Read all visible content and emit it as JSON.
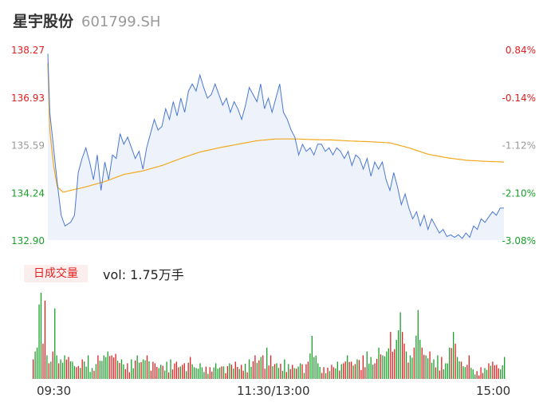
{
  "header": {
    "name": "星宇股份",
    "code": "601799.SH"
  },
  "colors": {
    "up": "#e02020",
    "down": "#1aa02a",
    "price_line": "#4a78d4",
    "avg_line": "#f2a81e",
    "area_fill": "#edf2fb",
    "neutral_label": "#999999"
  },
  "chart_data": [
    {
      "type": "line",
      "name": "intraday-price",
      "y_ticks": [
        "138.27",
        "136.93",
        "135.59",
        "134.24",
        "132.90"
      ],
      "pct_ticks": [
        "0.84%",
        "-0.14%",
        "-1.12%",
        "-2.10%",
        "-3.08%"
      ],
      "ylim": [
        132.9,
        138.27
      ],
      "x_ticks": [
        "09:30",
        "11:30/13:00",
        "15:00"
      ],
      "session_minutes": 240,
      "price_keyframes": [
        [
          0,
          138.15
        ],
        [
          1,
          136.5
        ],
        [
          3,
          135.5
        ],
        [
          5,
          134.5
        ],
        [
          7,
          133.6
        ],
        [
          9,
          133.3
        ],
        [
          12,
          133.4
        ],
        [
          14,
          133.6
        ],
        [
          16,
          134.8
        ],
        [
          18,
          135.2
        ],
        [
          20,
          135.5
        ],
        [
          22,
          135.1
        ],
        [
          24,
          134.6
        ],
        [
          26,
          135.3
        ],
        [
          28,
          134.3
        ],
        [
          30,
          135.1
        ],
        [
          32,
          134.6
        ],
        [
          34,
          135.3
        ],
        [
          36,
          135.2
        ],
        [
          38,
          135.9
        ],
        [
          40,
          135.6
        ],
        [
          42,
          135.8
        ],
        [
          44,
          135.5
        ],
        [
          46,
          135.2
        ],
        [
          48,
          135.4
        ],
        [
          50,
          134.9
        ],
        [
          52,
          135.5
        ],
        [
          54,
          135.9
        ],
        [
          56,
          136.3
        ],
        [
          58,
          136.0
        ],
        [
          60,
          136.1
        ],
        [
          62,
          136.6
        ],
        [
          64,
          136.3
        ],
        [
          66,
          136.8
        ],
        [
          68,
          136.4
        ],
        [
          70,
          136.9
        ],
        [
          72,
          136.5
        ],
        [
          74,
          137.1
        ],
        [
          76,
          137.3
        ],
        [
          78,
          137.1
        ],
        [
          80,
          137.55
        ],
        [
          82,
          137.2
        ],
        [
          84,
          136.9
        ],
        [
          86,
          137.0
        ],
        [
          88,
          137.3
        ],
        [
          90,
          137.0
        ],
        [
          92,
          136.7
        ],
        [
          94,
          136.9
        ],
        [
          96,
          136.5
        ],
        [
          98,
          136.8
        ],
        [
          100,
          136.6
        ],
        [
          102,
          136.3
        ],
        [
          104,
          136.7
        ],
        [
          106,
          137.2
        ],
        [
          108,
          137.0
        ],
        [
          110,
          136.8
        ],
        [
          112,
          137.3
        ],
        [
          114,
          136.6
        ],
        [
          116,
          136.9
        ],
        [
          118,
          136.5
        ],
        [
          120,
          136.9
        ],
        [
          122,
          137.3
        ],
        [
          124,
          136.5
        ],
        [
          126,
          136.3
        ],
        [
          128,
          136.0
        ],
        [
          130,
          135.8
        ],
        [
          132,
          135.3
        ],
        [
          134,
          135.6
        ],
        [
          136,
          135.4
        ],
        [
          138,
          135.5
        ],
        [
          140,
          135.3
        ],
        [
          142,
          135.6
        ],
        [
          144,
          135.6
        ],
        [
          146,
          135.4
        ],
        [
          148,
          135.5
        ],
        [
          150,
          135.3
        ],
        [
          152,
          135.5
        ],
        [
          154,
          135.4
        ],
        [
          156,
          135.2
        ],
        [
          158,
          135.4
        ],
        [
          160,
          135.0
        ],
        [
          162,
          135.3
        ],
        [
          164,
          135.2
        ],
        [
          166,
          134.9
        ],
        [
          168,
          135.2
        ],
        [
          170,
          134.7
        ],
        [
          172,
          135.1
        ],
        [
          174,
          134.9
        ],
        [
          176,
          135.1
        ],
        [
          178,
          134.6
        ],
        [
          180,
          134.3
        ],
        [
          182,
          134.8
        ],
        [
          184,
          134.4
        ],
        [
          186,
          133.9
        ],
        [
          188,
          134.2
        ],
        [
          190,
          133.8
        ],
        [
          192,
          133.5
        ],
        [
          194,
          133.7
        ],
        [
          196,
          133.3
        ],
        [
          198,
          133.6
        ],
        [
          200,
          133.2
        ],
        [
          202,
          133.5
        ],
        [
          204,
          133.3
        ],
        [
          206,
          133.1
        ],
        [
          208,
          133.2
        ],
        [
          210,
          133.0
        ],
        [
          212,
          133.05
        ],
        [
          214,
          132.98
        ],
        [
          216,
          133.05
        ],
        [
          218,
          132.95
        ],
        [
          220,
          133.1
        ],
        [
          222,
          132.98
        ],
        [
          224,
          133.3
        ],
        [
          226,
          133.2
        ],
        [
          228,
          133.5
        ],
        [
          230,
          133.4
        ],
        [
          232,
          133.55
        ],
        [
          234,
          133.7
        ],
        [
          236,
          133.6
        ],
        [
          238,
          133.8
        ],
        [
          240,
          133.8
        ]
      ],
      "avg_keyframes": [
        [
          0,
          137.9
        ],
        [
          1,
          136.0
        ],
        [
          3,
          135.0
        ],
        [
          5,
          134.4
        ],
        [
          8,
          134.25
        ],
        [
          12,
          134.3
        ],
        [
          20,
          134.4
        ],
        [
          30,
          134.55
        ],
        [
          40,
          134.75
        ],
        [
          50,
          134.85
        ],
        [
          60,
          135.0
        ],
        [
          70,
          135.2
        ],
        [
          80,
          135.38
        ],
        [
          90,
          135.5
        ],
        [
          100,
          135.6
        ],
        [
          110,
          135.7
        ],
        [
          120,
          135.75
        ],
        [
          130,
          135.75
        ],
        [
          140,
          135.73
        ],
        [
          150,
          135.72
        ],
        [
          160,
          135.69
        ],
        [
          170,
          135.67
        ],
        [
          180,
          135.64
        ],
        [
          190,
          135.5
        ],
        [
          200,
          135.32
        ],
        [
          210,
          135.22
        ],
        [
          220,
          135.15
        ],
        [
          230,
          135.12
        ],
        [
          240,
          135.1
        ]
      ]
    },
    {
      "type": "bar",
      "name": "volume",
      "label": "日成交量",
      "summary": "vol: 1.75万手",
      "volume_keyframes": [
        [
          0,
          25,
          "up"
        ],
        [
          1,
          35,
          "down"
        ],
        [
          2,
          40,
          "down"
        ],
        [
          3,
          95,
          "down"
        ],
        [
          4,
          110,
          "down"
        ],
        [
          5,
          45,
          "up"
        ],
        [
          6,
          100,
          "up"
        ],
        [
          7,
          30,
          "down"
        ],
        [
          8,
          20,
          "up"
        ],
        [
          9,
          22,
          "down"
        ],
        [
          10,
          35,
          "up"
        ],
        [
          11,
          90,
          "down"
        ],
        [
          12,
          30,
          "down"
        ],
        [
          13,
          20,
          "up"
        ],
        [
          14,
          25,
          "down"
        ],
        [
          16,
          30,
          "down"
        ],
        [
          18,
          28,
          "up"
        ],
        [
          20,
          22,
          "down"
        ],
        [
          22,
          15,
          "up"
        ],
        [
          25,
          25,
          "up"
        ],
        [
          28,
          30,
          "down"
        ],
        [
          30,
          14,
          "down"
        ],
        [
          33,
          30,
          "up"
        ],
        [
          36,
          30,
          "down"
        ],
        [
          38,
          35,
          "down"
        ],
        [
          40,
          30,
          "up"
        ],
        [
          42,
          32,
          "up"
        ],
        [
          45,
          25,
          "down"
        ],
        [
          48,
          20,
          "up"
        ],
        [
          50,
          25,
          "down"
        ],
        [
          53,
          30,
          "down"
        ],
        [
          56,
          25,
          "down"
        ],
        [
          58,
          30,
          "up"
        ],
        [
          62,
          20,
          "up"
        ],
        [
          65,
          18,
          "down"
        ],
        [
          68,
          22,
          "down"
        ],
        [
          70,
          25,
          "down"
        ],
        [
          73,
          22,
          "up"
        ],
        [
          76,
          18,
          "up"
        ],
        [
          80,
          28,
          "up"
        ],
        [
          82,
          15,
          "down"
        ],
        [
          85,
          20,
          "down"
        ],
        [
          90,
          15,
          "up"
        ],
        [
          93,
          20,
          "down"
        ],
        [
          96,
          16,
          "up"
        ],
        [
          100,
          20,
          "down"
        ],
        [
          103,
          22,
          "up"
        ],
        [
          106,
          18,
          "up"
        ],
        [
          110,
          25,
          "down"
        ],
        [
          113,
          30,
          "up"
        ],
        [
          116,
          28,
          "down"
        ],
        [
          119,
          40,
          "down"
        ],
        [
          121,
          30,
          "up"
        ],
        [
          124,
          20,
          "down"
        ],
        [
          128,
          25,
          "down"
        ],
        [
          132,
          18,
          "up"
        ],
        [
          136,
          20,
          "down"
        ],
        [
          140,
          22,
          "up"
        ],
        [
          142,
          55,
          "down"
        ],
        [
          145,
          20,
          "down"
        ],
        [
          148,
          15,
          "up"
        ],
        [
          152,
          18,
          "up"
        ],
        [
          155,
          22,
          "down"
        ],
        [
          158,
          20,
          "up"
        ],
        [
          160,
          30,
          "down"
        ],
        [
          162,
          22,
          "up"
        ],
        [
          165,
          25,
          "down"
        ],
        [
          168,
          30,
          "up"
        ],
        [
          170,
          35,
          "down"
        ],
        [
          172,
          28,
          "down"
        ],
        [
          174,
          20,
          "up"
        ],
        [
          176,
          40,
          "down"
        ],
        [
          178,
          30,
          "down"
        ],
        [
          180,
          35,
          "down"
        ],
        [
          182,
          60,
          "up"
        ],
        [
          184,
          38,
          "up"
        ],
        [
          185,
          50,
          "down"
        ],
        [
          186,
          62,
          "down"
        ],
        [
          187,
          85,
          "down"
        ],
        [
          188,
          60,
          "up"
        ],
        [
          189,
          45,
          "up"
        ],
        [
          190,
          35,
          "down"
        ],
        [
          192,
          30,
          "down"
        ],
        [
          194,
          40,
          "up"
        ],
        [
          196,
          88,
          "down"
        ],
        [
          197,
          50,
          "down"
        ],
        [
          198,
          40,
          "up"
        ],
        [
          200,
          30,
          "down"
        ],
        [
          202,
          35,
          "up"
        ],
        [
          204,
          25,
          "down"
        ],
        [
          206,
          30,
          "down"
        ],
        [
          208,
          28,
          "up"
        ],
        [
          210,
          20,
          "down"
        ],
        [
          212,
          40,
          "down"
        ],
        [
          214,
          60,
          "down"
        ],
        [
          215,
          45,
          "up"
        ],
        [
          216,
          28,
          "down"
        ],
        [
          218,
          22,
          "up"
        ],
        [
          220,
          15,
          "down"
        ],
        [
          222,
          30,
          "up"
        ],
        [
          224,
          12,
          "down"
        ],
        [
          226,
          10,
          "up"
        ],
        [
          228,
          15,
          "up"
        ],
        [
          230,
          14,
          "down"
        ],
        [
          232,
          20,
          "up"
        ],
        [
          234,
          22,
          "up"
        ],
        [
          236,
          18,
          "up"
        ],
        [
          238,
          12,
          "down"
        ],
        [
          240,
          28,
          "down"
        ]
      ]
    }
  ]
}
